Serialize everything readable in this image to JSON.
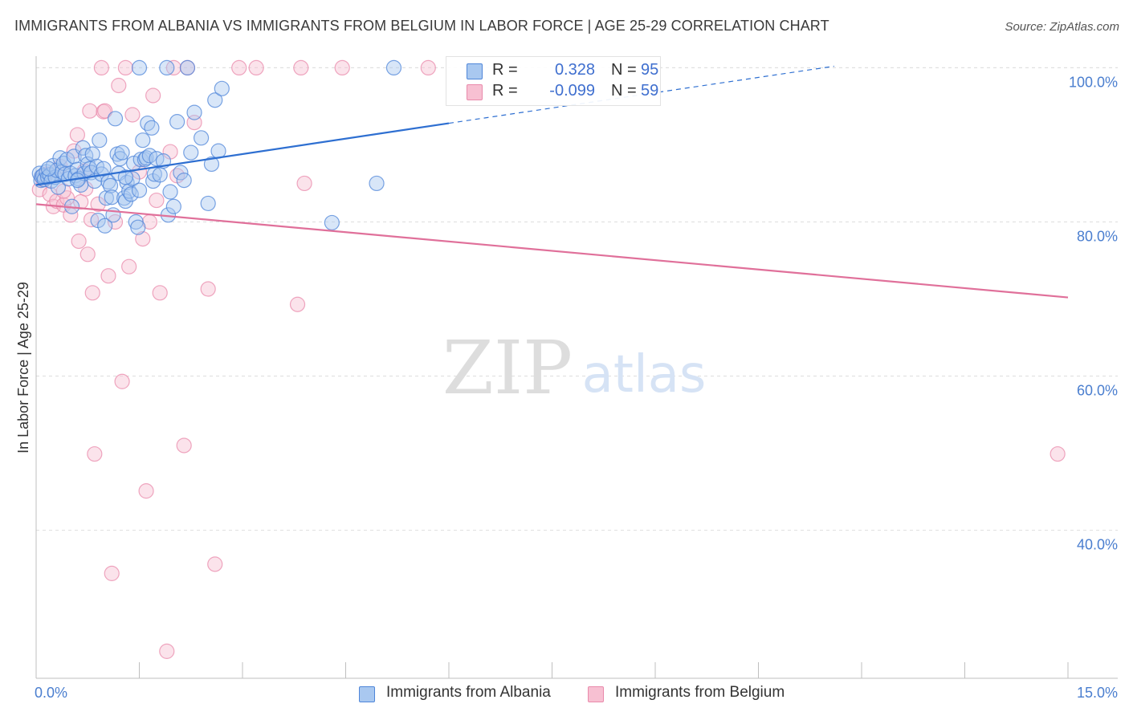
{
  "title": "IMMIGRANTS FROM ALBANIA VS IMMIGRANTS FROM BELGIUM IN LABOR FORCE | AGE 25-29 CORRELATION CHART",
  "source": "Source: ZipAtlas.com",
  "watermark": {
    "zip": "ZIP",
    "atlas": "atlas"
  },
  "legend": {
    "albania": {
      "r_label": "R =",
      "r_value": "0.328",
      "n_label": "N =",
      "n_value": "95"
    },
    "belgium": {
      "r_label": "R =",
      "r_value": "-0.099",
      "n_label": "N =",
      "n_value": "59"
    }
  },
  "bottom_legend": {
    "albania": "Immigrants from Albania",
    "belgium": "Immigrants from Belgium"
  },
  "colors": {
    "albania_fill": "#a9c8f0",
    "albania_stroke": "#4f86d9",
    "albania_line": "#2e6fd1",
    "belgium_fill": "#f7c0d2",
    "belgium_stroke": "#e98aab",
    "belgium_line": "#e0709a",
    "tick_text": "#4a7ecf",
    "grid": "#dedede"
  },
  "chart_data": {
    "type": "scatter",
    "title": "IMMIGRANTS FROM ALBANIA VS IMMIGRANTS FROM BELGIUM IN LABOR FORCE | AGE 25-29 CORRELATION CHART",
    "xlabel": "",
    "ylabel": "In Labor Force | Age 25-29",
    "xlim": [
      0,
      15
    ],
    "ylim": [
      20.8,
      101.5
    ],
    "x_tick_labels": [
      "0.0%",
      "15.0%"
    ],
    "y_ticks": [
      40,
      60,
      80,
      100
    ],
    "y_tick_labels": [
      "40.0%",
      "60.0%",
      "80.0%",
      "100.0%"
    ],
    "grid": true,
    "series": [
      {
        "name": "Immigrants from Albania",
        "R": 0.328,
        "N": 95,
        "trend": {
          "x0": 0,
          "y0": 84.8,
          "x1": 6.0,
          "y1": 92.8,
          "dashed_to_x": 11.6,
          "dashed_to_y": 100.2
        },
        "points": [
          [
            0.05,
            86.3
          ],
          [
            0.07,
            85.4
          ],
          [
            0.08,
            85.9
          ],
          [
            0.1,
            86.0
          ],
          [
            0.12,
            85.5
          ],
          [
            0.15,
            86.5
          ],
          [
            0.17,
            85.8
          ],
          [
            0.2,
            86.1
          ],
          [
            0.22,
            85.3
          ],
          [
            0.25,
            87.3
          ],
          [
            0.28,
            85.8
          ],
          [
            0.3,
            86.7
          ],
          [
            0.32,
            84.5
          ],
          [
            0.35,
            88.3
          ],
          [
            0.38,
            86.5
          ],
          [
            0.4,
            87.6
          ],
          [
            0.42,
            86.2
          ],
          [
            0.45,
            88.1
          ],
          [
            0.47,
            85.6
          ],
          [
            0.5,
            86.3
          ],
          [
            0.52,
            82.0
          ],
          [
            0.55,
            88.5
          ],
          [
            0.57,
            86.0
          ],
          [
            0.6,
            86.8
          ],
          [
            0.62,
            85.6
          ],
          [
            0.65,
            84.8
          ],
          [
            0.68,
            89.6
          ],
          [
            0.7,
            86.3
          ],
          [
            0.72,
            88.6
          ],
          [
            0.75,
            87.5
          ],
          [
            0.78,
            86.9
          ],
          [
            0.8,
            86.4
          ],
          [
            0.82,
            88.8
          ],
          [
            0.85,
            85.3
          ],
          [
            0.88,
            87.2
          ],
          [
            0.9,
            80.2
          ],
          [
            0.92,
            90.6
          ],
          [
            0.95,
            86.2
          ],
          [
            0.98,
            86.9
          ],
          [
            1.0,
            79.5
          ],
          [
            1.02,
            83.1
          ],
          [
            1.05,
            85.2
          ],
          [
            1.08,
            84.7
          ],
          [
            1.1,
            83.2
          ],
          [
            1.12,
            80.9
          ],
          [
            1.15,
            93.4
          ],
          [
            1.18,
            88.8
          ],
          [
            1.2,
            86.3
          ],
          [
            1.22,
            88.2
          ],
          [
            1.25,
            89.0
          ],
          [
            1.28,
            83.1
          ],
          [
            1.3,
            82.7
          ],
          [
            1.32,
            85.1
          ],
          [
            1.35,
            84.0
          ],
          [
            1.38,
            83.6
          ],
          [
            1.4,
            85.6
          ],
          [
            1.42,
            87.6
          ],
          [
            1.45,
            80.0
          ],
          [
            1.48,
            79.3
          ],
          [
            1.5,
            84.1
          ],
          [
            1.52,
            88.1
          ],
          [
            1.55,
            90.6
          ],
          [
            1.58,
            88.1
          ],
          [
            1.6,
            88.3
          ],
          [
            1.62,
            92.8
          ],
          [
            1.65,
            88.6
          ],
          [
            1.68,
            92.2
          ],
          [
            1.7,
            85.3
          ],
          [
            1.72,
            86.2
          ],
          [
            1.75,
            88.2
          ],
          [
            1.8,
            86.1
          ],
          [
            1.85,
            87.9
          ],
          [
            1.9,
            100.0
          ],
          [
            1.92,
            80.9
          ],
          [
            1.95,
            83.9
          ],
          [
            2.0,
            82.0
          ],
          [
            2.05,
            93.0
          ],
          [
            2.1,
            86.4
          ],
          [
            2.15,
            85.4
          ],
          [
            2.2,
            100.0
          ],
          [
            2.25,
            89.0
          ],
          [
            2.3,
            94.2
          ],
          [
            2.4,
            90.9
          ],
          [
            2.5,
            82.4
          ],
          [
            2.55,
            87.5
          ],
          [
            2.6,
            95.8
          ],
          [
            2.65,
            89.2
          ],
          [
            2.7,
            97.3
          ],
          [
            4.3,
            79.9
          ],
          [
            4.95,
            85.0
          ],
          [
            5.2,
            100.0
          ],
          [
            1.5,
            100.0
          ],
          [
            0.18,
            86.9
          ],
          [
            0.6,
            85.4
          ],
          [
            1.3,
            85.8
          ]
        ]
      },
      {
        "name": "Immigrants from Belgium",
        "R": -0.099,
        "N": 59,
        "trend": {
          "x0": 0,
          "y0": 82.3,
          "x1": 15.0,
          "y1": 70.2
        },
        "points": [
          [
            0.05,
            84.2
          ],
          [
            0.1,
            85.5
          ],
          [
            0.15,
            86.2
          ],
          [
            0.2,
            83.6
          ],
          [
            0.25,
            82.0
          ],
          [
            0.3,
            82.7
          ],
          [
            0.35,
            87.2
          ],
          [
            0.4,
            82.2
          ],
          [
            0.45,
            83.1
          ],
          [
            0.5,
            80.9
          ],
          [
            0.55,
            89.2
          ],
          [
            0.6,
            91.3
          ],
          [
            0.62,
            77.5
          ],
          [
            0.65,
            82.6
          ],
          [
            0.7,
            86.6
          ],
          [
            0.72,
            84.3
          ],
          [
            0.75,
            75.8
          ],
          [
            0.78,
            94.4
          ],
          [
            0.8,
            80.3
          ],
          [
            0.82,
            70.8
          ],
          [
            0.85,
            49.9
          ],
          [
            0.9,
            82.3
          ],
          [
            0.95,
            100.0
          ],
          [
            0.98,
            94.3
          ],
          [
            1.0,
            94.4
          ],
          [
            1.05,
            73.0
          ],
          [
            1.1,
            34.4
          ],
          [
            1.15,
            80.0
          ],
          [
            1.2,
            97.7
          ],
          [
            1.25,
            59.3
          ],
          [
            1.3,
            100.0
          ],
          [
            1.35,
            74.2
          ],
          [
            1.4,
            93.9
          ],
          [
            1.5,
            86.5
          ],
          [
            1.55,
            77.8
          ],
          [
            1.6,
            45.1
          ],
          [
            1.65,
            80.0
          ],
          [
            1.7,
            96.4
          ],
          [
            1.75,
            82.8
          ],
          [
            1.8,
            70.8
          ],
          [
            1.9,
            24.3
          ],
          [
            1.95,
            89.1
          ],
          [
            2.0,
            100.0
          ],
          [
            2.05,
            86.0
          ],
          [
            2.15,
            51.0
          ],
          [
            2.2,
            100.0
          ],
          [
            2.3,
            92.9
          ],
          [
            2.5,
            71.3
          ],
          [
            2.6,
            35.6
          ],
          [
            2.95,
            100.0
          ],
          [
            3.2,
            100.0
          ],
          [
            3.8,
            69.3
          ],
          [
            3.85,
            100.0
          ],
          [
            3.9,
            85.0
          ],
          [
            4.45,
            100.0
          ],
          [
            5.7,
            100.0
          ],
          [
            14.85,
            49.9
          ],
          [
            0.08,
            85.8
          ],
          [
            0.4,
            84.0
          ]
        ]
      }
    ]
  }
}
